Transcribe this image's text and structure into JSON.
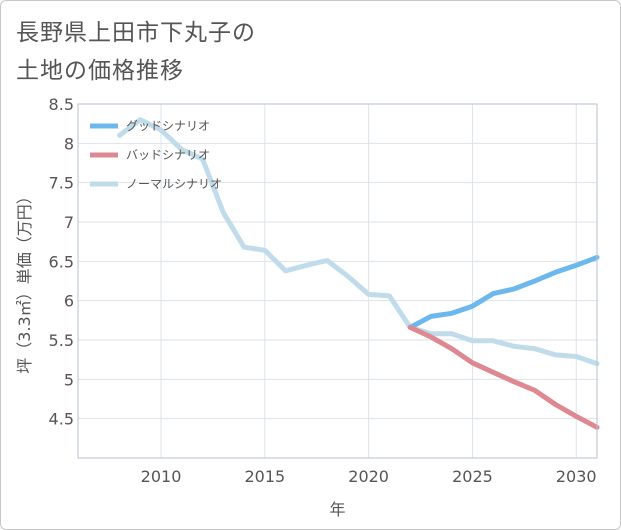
{
  "title": "長野県上田市下丸子の\n土地の価格推移",
  "chart_data": {
    "type": "line",
    "xlabel": "年",
    "ylabel": "坪（3.3㎡）単価（万円）",
    "xlim": [
      2006,
      2031
    ],
    "ylim": [
      4.0,
      8.5
    ],
    "xticks": [
      2010,
      2015,
      2020,
      2025,
      2030
    ],
    "xtick_labels": [
      "2010",
      "2015",
      "2020",
      "2025",
      "2030"
    ],
    "yticks": [
      4.5,
      5,
      5.5,
      6,
      6.5,
      7,
      7.5,
      8,
      8.5
    ],
    "ytick_labels": [
      "4.5",
      "5",
      "5.5",
      "6",
      "6.5",
      "7",
      "7.5",
      "8",
      "8.5"
    ],
    "grid": true,
    "legend_position": "top-left",
    "series": [
      {
        "name": "グッドシナリオ",
        "color": "#6cb8ec",
        "x": [
          2022,
          2023,
          2024,
          2025,
          2026,
          2027,
          2028,
          2029,
          2030,
          2031
        ],
        "y": [
          5.66,
          5.8,
          5.84,
          5.93,
          6.09,
          6.15,
          6.25,
          6.36,
          6.45,
          6.55
        ]
      },
      {
        "name": "バッドシナリオ",
        "color": "#de8891",
        "x": [
          2022,
          2023,
          2024,
          2025,
          2026,
          2027,
          2028,
          2029,
          2030,
          2031
        ],
        "y": [
          5.66,
          5.54,
          5.39,
          5.21,
          5.09,
          4.97,
          4.86,
          4.68,
          4.53,
          4.39
        ]
      },
      {
        "name": "ノーマルシナリオ",
        "color": "#c0dceb",
        "x": [
          2008,
          2009,
          2010,
          2011,
          2012,
          2013,
          2014,
          2015,
          2016,
          2017,
          2018,
          2019,
          2020,
          2021,
          2022,
          2023,
          2024,
          2025,
          2026,
          2027,
          2028,
          2029,
          2030,
          2031
        ],
        "y": [
          8.1,
          8.3,
          8.17,
          7.92,
          7.8,
          7.12,
          6.68,
          6.64,
          6.38,
          6.45,
          6.51,
          6.31,
          6.08,
          6.06,
          5.66,
          5.58,
          5.58,
          5.49,
          5.49,
          5.42,
          5.39,
          5.31,
          5.29,
          5.2
        ]
      }
    ]
  }
}
